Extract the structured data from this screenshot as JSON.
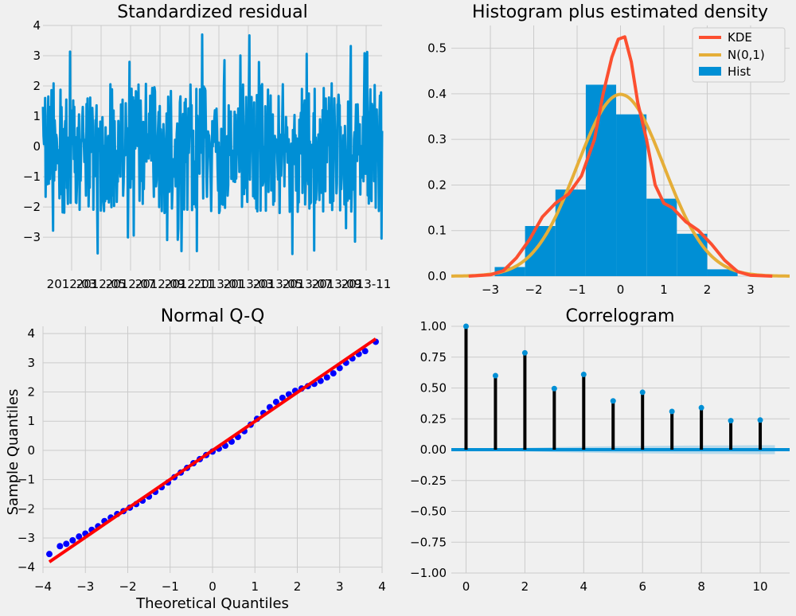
{
  "colors": {
    "background": "#f0f0f0",
    "grid": "#cbcbcb",
    "blue": "#008fd5",
    "red_kde": "#fc4f30",
    "gold_normal": "#e5ae38",
    "qq_points": "#0000ff",
    "qq_line": "#ff0000",
    "stem": "#000000",
    "conf_band": "#85c7e8"
  },
  "chart_data": [
    {
      "id": "residual",
      "type": "line",
      "title": "Standardized residual",
      "xlabel": "",
      "ylabel": "",
      "ylim": [
        -4.1,
        4.0
      ],
      "yticks": [
        -3,
        -2,
        -1,
        0,
        1,
        2,
        3,
        4
      ],
      "x_tick_labels": [
        "2012-03",
        "2012-05",
        "2012-07",
        "2012-09",
        "2012-11",
        "2013-01",
        "2013-03",
        "2013-05",
        "2013-07",
        "2013-09",
        "2013-11"
      ],
      "x_range": [
        "2012-01",
        "2013-12"
      ],
      "grid": true,
      "y_summary": {
        "min": -3.55,
        "max": 3.7,
        "typical_low": -2.2,
        "typical_high": 2.1
      }
    },
    {
      "id": "histogram",
      "type": "bar",
      "title": "Histogram plus estimated density",
      "xlabel": "",
      "ylabel": "",
      "xlim": [
        -3.9,
        3.9
      ],
      "ylim": [
        0,
        0.55
      ],
      "xticks": [
        -3,
        -2,
        -1,
        0,
        1,
        2,
        3
      ],
      "yticks": [
        0.0,
        0.1,
        0.2,
        0.3,
        0.4,
        0.5
      ],
      "legend": {
        "position": "top-right",
        "entries": [
          "KDE",
          "N(0,1)",
          "Hist"
        ]
      },
      "bin_edges": [
        -2.9,
        -2.2,
        -1.5,
        -0.8,
        -0.1,
        0.6,
        1.3,
        2.0,
        2.7
      ],
      "hist_values": [
        0.02,
        0.11,
        0.19,
        0.42,
        0.355,
        0.17,
        0.093,
        0.015
      ],
      "kde": {
        "x": [
          -3.5,
          -3.0,
          -2.7,
          -2.4,
          -2.1,
          -1.8,
          -1.5,
          -1.2,
          -0.9,
          -0.6,
          -0.4,
          -0.2,
          -0.05,
          0.1,
          0.25,
          0.4,
          0.6,
          0.8,
          1.0,
          1.2,
          1.5,
          1.8,
          2.1,
          2.4,
          2.7,
          3.0,
          3.5
        ],
        "y": [
          0.0,
          0.003,
          0.012,
          0.04,
          0.08,
          0.13,
          0.16,
          0.18,
          0.22,
          0.3,
          0.4,
          0.48,
          0.52,
          0.525,
          0.47,
          0.38,
          0.3,
          0.2,
          0.16,
          0.15,
          0.12,
          0.1,
          0.07,
          0.035,
          0.01,
          0.002,
          0.0
        ]
      },
      "normal_curve": {
        "name": "N(0,1)",
        "mean": 0,
        "sd": 1
      }
    },
    {
      "id": "qq",
      "type": "scatter",
      "title": "Normal Q-Q",
      "xlabel": "Theoretical Quantiles",
      "ylabel": "Sample Quantiles",
      "xlim": [
        -4,
        4
      ],
      "ylim": [
        -4.2,
        4.25
      ],
      "xticks": [
        -4,
        -3,
        -2,
        -1,
        0,
        1,
        2,
        3,
        4
      ],
      "yticks": [
        -4,
        -3,
        -2,
        -1,
        0,
        1,
        2,
        3,
        4
      ],
      "points": {
        "x": [
          -3.85,
          -3.6,
          -3.45,
          -3.3,
          -3.15,
          -3.0,
          -2.85,
          -2.7,
          -2.55,
          -2.4,
          -2.25,
          -2.1,
          -1.95,
          -1.8,
          -1.65,
          -1.5,
          -1.35,
          -1.2,
          -1.05,
          -0.9,
          -0.75,
          -0.6,
          -0.45,
          -0.3,
          -0.15,
          0.0,
          0.15,
          0.3,
          0.45,
          0.6,
          0.75,
          0.9,
          1.05,
          1.2,
          1.35,
          1.5,
          1.65,
          1.8,
          1.95,
          2.1,
          2.25,
          2.4,
          2.55,
          2.7,
          2.85,
          3.0,
          3.15,
          3.3,
          3.45,
          3.6,
          3.85
        ],
        "y": [
          -3.55,
          -3.28,
          -3.2,
          -3.08,
          -2.95,
          -2.85,
          -2.72,
          -2.6,
          -2.42,
          -2.3,
          -2.18,
          -2.08,
          -1.96,
          -1.84,
          -1.72,
          -1.58,
          -1.42,
          -1.26,
          -1.1,
          -0.92,
          -0.76,
          -0.6,
          -0.44,
          -0.3,
          -0.16,
          -0.04,
          0.06,
          0.16,
          0.3,
          0.46,
          0.66,
          0.88,
          1.08,
          1.28,
          1.48,
          1.66,
          1.8,
          1.92,
          2.04,
          2.12,
          2.2,
          2.28,
          2.38,
          2.5,
          2.64,
          2.82,
          3.0,
          3.15,
          3.3,
          3.4,
          3.72
        ]
      },
      "reference_line": {
        "x": [
          -3.85,
          3.85
        ],
        "y": [
          -3.82,
          3.82
        ]
      }
    },
    {
      "id": "correlogram",
      "type": "bar",
      "title": "Correlogram",
      "xlabel": "",
      "ylabel": "",
      "xlim": [
        -0.5,
        11
      ],
      "ylim": [
        -1.0,
        1.0
      ],
      "xticks": [
        0,
        2,
        4,
        6,
        8,
        10
      ],
      "yticks": [
        -1.0,
        -0.75,
        -0.5,
        -0.25,
        0.0,
        0.25,
        0.5,
        0.75,
        1.0
      ],
      "ytick_labels": [
        "−1.00",
        "−0.75",
        "−0.50",
        "−0.25",
        "0.00",
        "0.25",
        "0.50",
        "0.75",
        "1.00"
      ],
      "lags": [
        0,
        1,
        2,
        3,
        4,
        5,
        6,
        7,
        8,
        9,
        10
      ],
      "acf": [
        1.0,
        0.6,
        0.785,
        0.495,
        0.61,
        0.395,
        0.465,
        0.31,
        0.34,
        0.235,
        0.24
      ],
      "confidence_band": {
        "lags": [
          0,
          1,
          2,
          3,
          4,
          5,
          6,
          7,
          8,
          9,
          10
        ],
        "upper": [
          0.0,
          0.008,
          0.014,
          0.02,
          0.024,
          0.028,
          0.03,
          0.032,
          0.034,
          0.035,
          0.036
        ]
      }
    }
  ]
}
